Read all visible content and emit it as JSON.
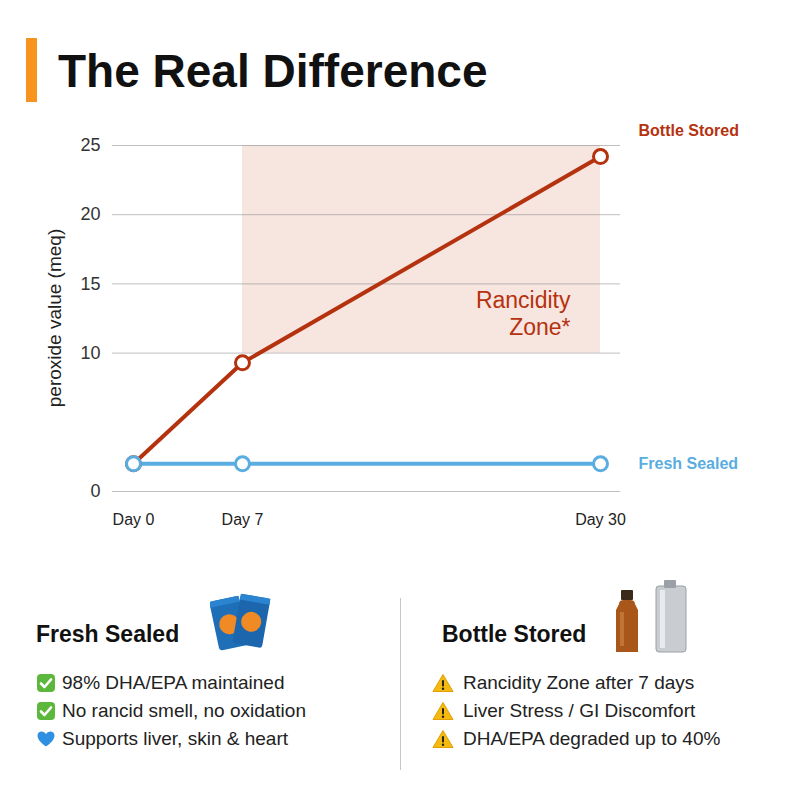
{
  "chart_data": {
    "type": "line",
    "title": "The Real Difference",
    "ylabel": "peroxide value (meq)",
    "x": [
      0,
      7,
      30
    ],
    "xlim": [
      0,
      30
    ],
    "xticks": [
      {
        "value": 0,
        "label": "Day 0"
      },
      {
        "value": 7,
        "label": "Day 7"
      },
      {
        "value": 30,
        "label": "Day 30"
      }
    ],
    "ylim": [
      0,
      25
    ],
    "yticks": [
      0,
      10,
      15,
      20,
      25
    ],
    "grid": true,
    "series": [
      {
        "name": "Bottle Stored",
        "color": "#b5320f",
        "values": [
          2,
          9.3,
          24.2
        ],
        "marker": "circle"
      },
      {
        "name": "Fresh Sealed",
        "color": "#5aade0",
        "values": [
          2,
          2,
          2
        ],
        "marker": "circle"
      }
    ],
    "zones": [
      {
        "label": "Rancidity\nZone*",
        "x": [
          7,
          30
        ],
        "y": [
          10,
          25
        ],
        "color": "#f6e0db"
      }
    ]
  },
  "panels": [
    {
      "title": "Fresh Sealed",
      "items": [
        {
          "marker": "check",
          "text": "98% DHA/EPA maintained"
        },
        {
          "marker": "check",
          "text": "No rancid smell, no oxidation"
        },
        {
          "marker": "heart",
          "text": "Supports liver, skin & heart"
        }
      ]
    },
    {
      "title": "Bottle Stored",
      "items": [
        {
          "marker": "warning",
          "text": "Rancidity Zone after 7 days"
        },
        {
          "marker": "warning",
          "text": "Liver Stress / GI Discomfort"
        },
        {
          "marker": "warning",
          "text": "DHA/EPA degraded up to 40%"
        }
      ]
    }
  ]
}
